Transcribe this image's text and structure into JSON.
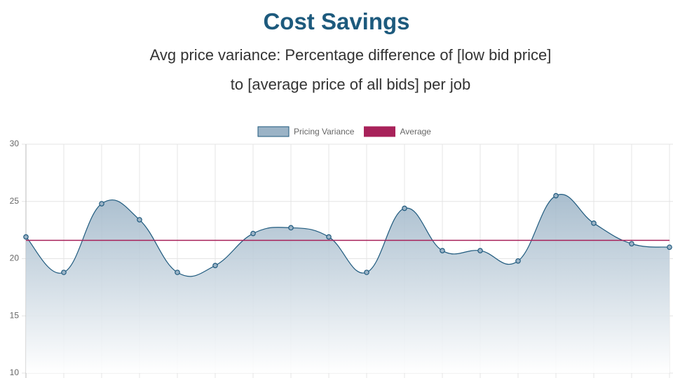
{
  "chart_data": {
    "type": "line",
    "title": "Cost Savings",
    "subtitle": "Avg price variance: Percentage difference of [low bid price] to [average price of all bids] per job",
    "series": [
      {
        "name": "Pricing Variance",
        "color": "#1f5a7e",
        "fill": true,
        "values": [
          21.9,
          18.8,
          24.8,
          23.4,
          18.8,
          19.4,
          22.2,
          22.7,
          21.9,
          18.8,
          24.4,
          20.7,
          20.7,
          19.8,
          25.5,
          23.1,
          21.3,
          21.0
        ]
      },
      {
        "name": "Average",
        "color": "#a8225a",
        "fill": false,
        "values": [
          21.6,
          21.6,
          21.6,
          21.6,
          21.6,
          21.6,
          21.6,
          21.6,
          21.6,
          21.6,
          21.6,
          21.6,
          21.6,
          21.6,
          21.6,
          21.6,
          21.6,
          21.6
        ]
      }
    ],
    "ylim": [
      10,
      30
    ],
    "yticks": [
      10,
      15,
      20,
      25,
      30
    ],
    "grid": true
  }
}
